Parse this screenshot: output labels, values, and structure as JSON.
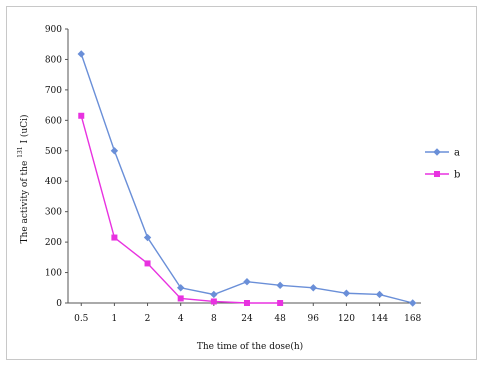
{
  "chart_data": {
    "type": "line",
    "categories": [
      "0.5",
      "1",
      "2",
      "4",
      "8",
      "24",
      "48",
      "96",
      "120",
      "144",
      "168"
    ],
    "series": [
      {
        "name": "a",
        "color": "#6a8fd8",
        "marker": "diamond",
        "values": [
          818,
          500,
          215,
          50,
          28,
          70,
          58,
          50,
          32,
          28,
          0
        ]
      },
      {
        "name": "b",
        "color": "#e832e0",
        "marker": "square",
        "values": [
          615,
          215,
          130,
          15,
          5,
          0,
          0,
          null,
          null,
          null,
          null
        ]
      }
    ],
    "y_ticks": [
      "0",
      "100",
      "200",
      "300",
      "400",
      "500",
      "600",
      "700",
      "800",
      "900"
    ],
    "ylim": [
      0,
      900
    ],
    "xlabel": "The time of the dose(h)",
    "ylabel_prefix": "The activity of the",
    "ylabel_superscript": "131",
    "ylabel_suffix": "I (uCi)",
    "legend_position": "right",
    "grid": false,
    "axis_color": "#555555"
  }
}
